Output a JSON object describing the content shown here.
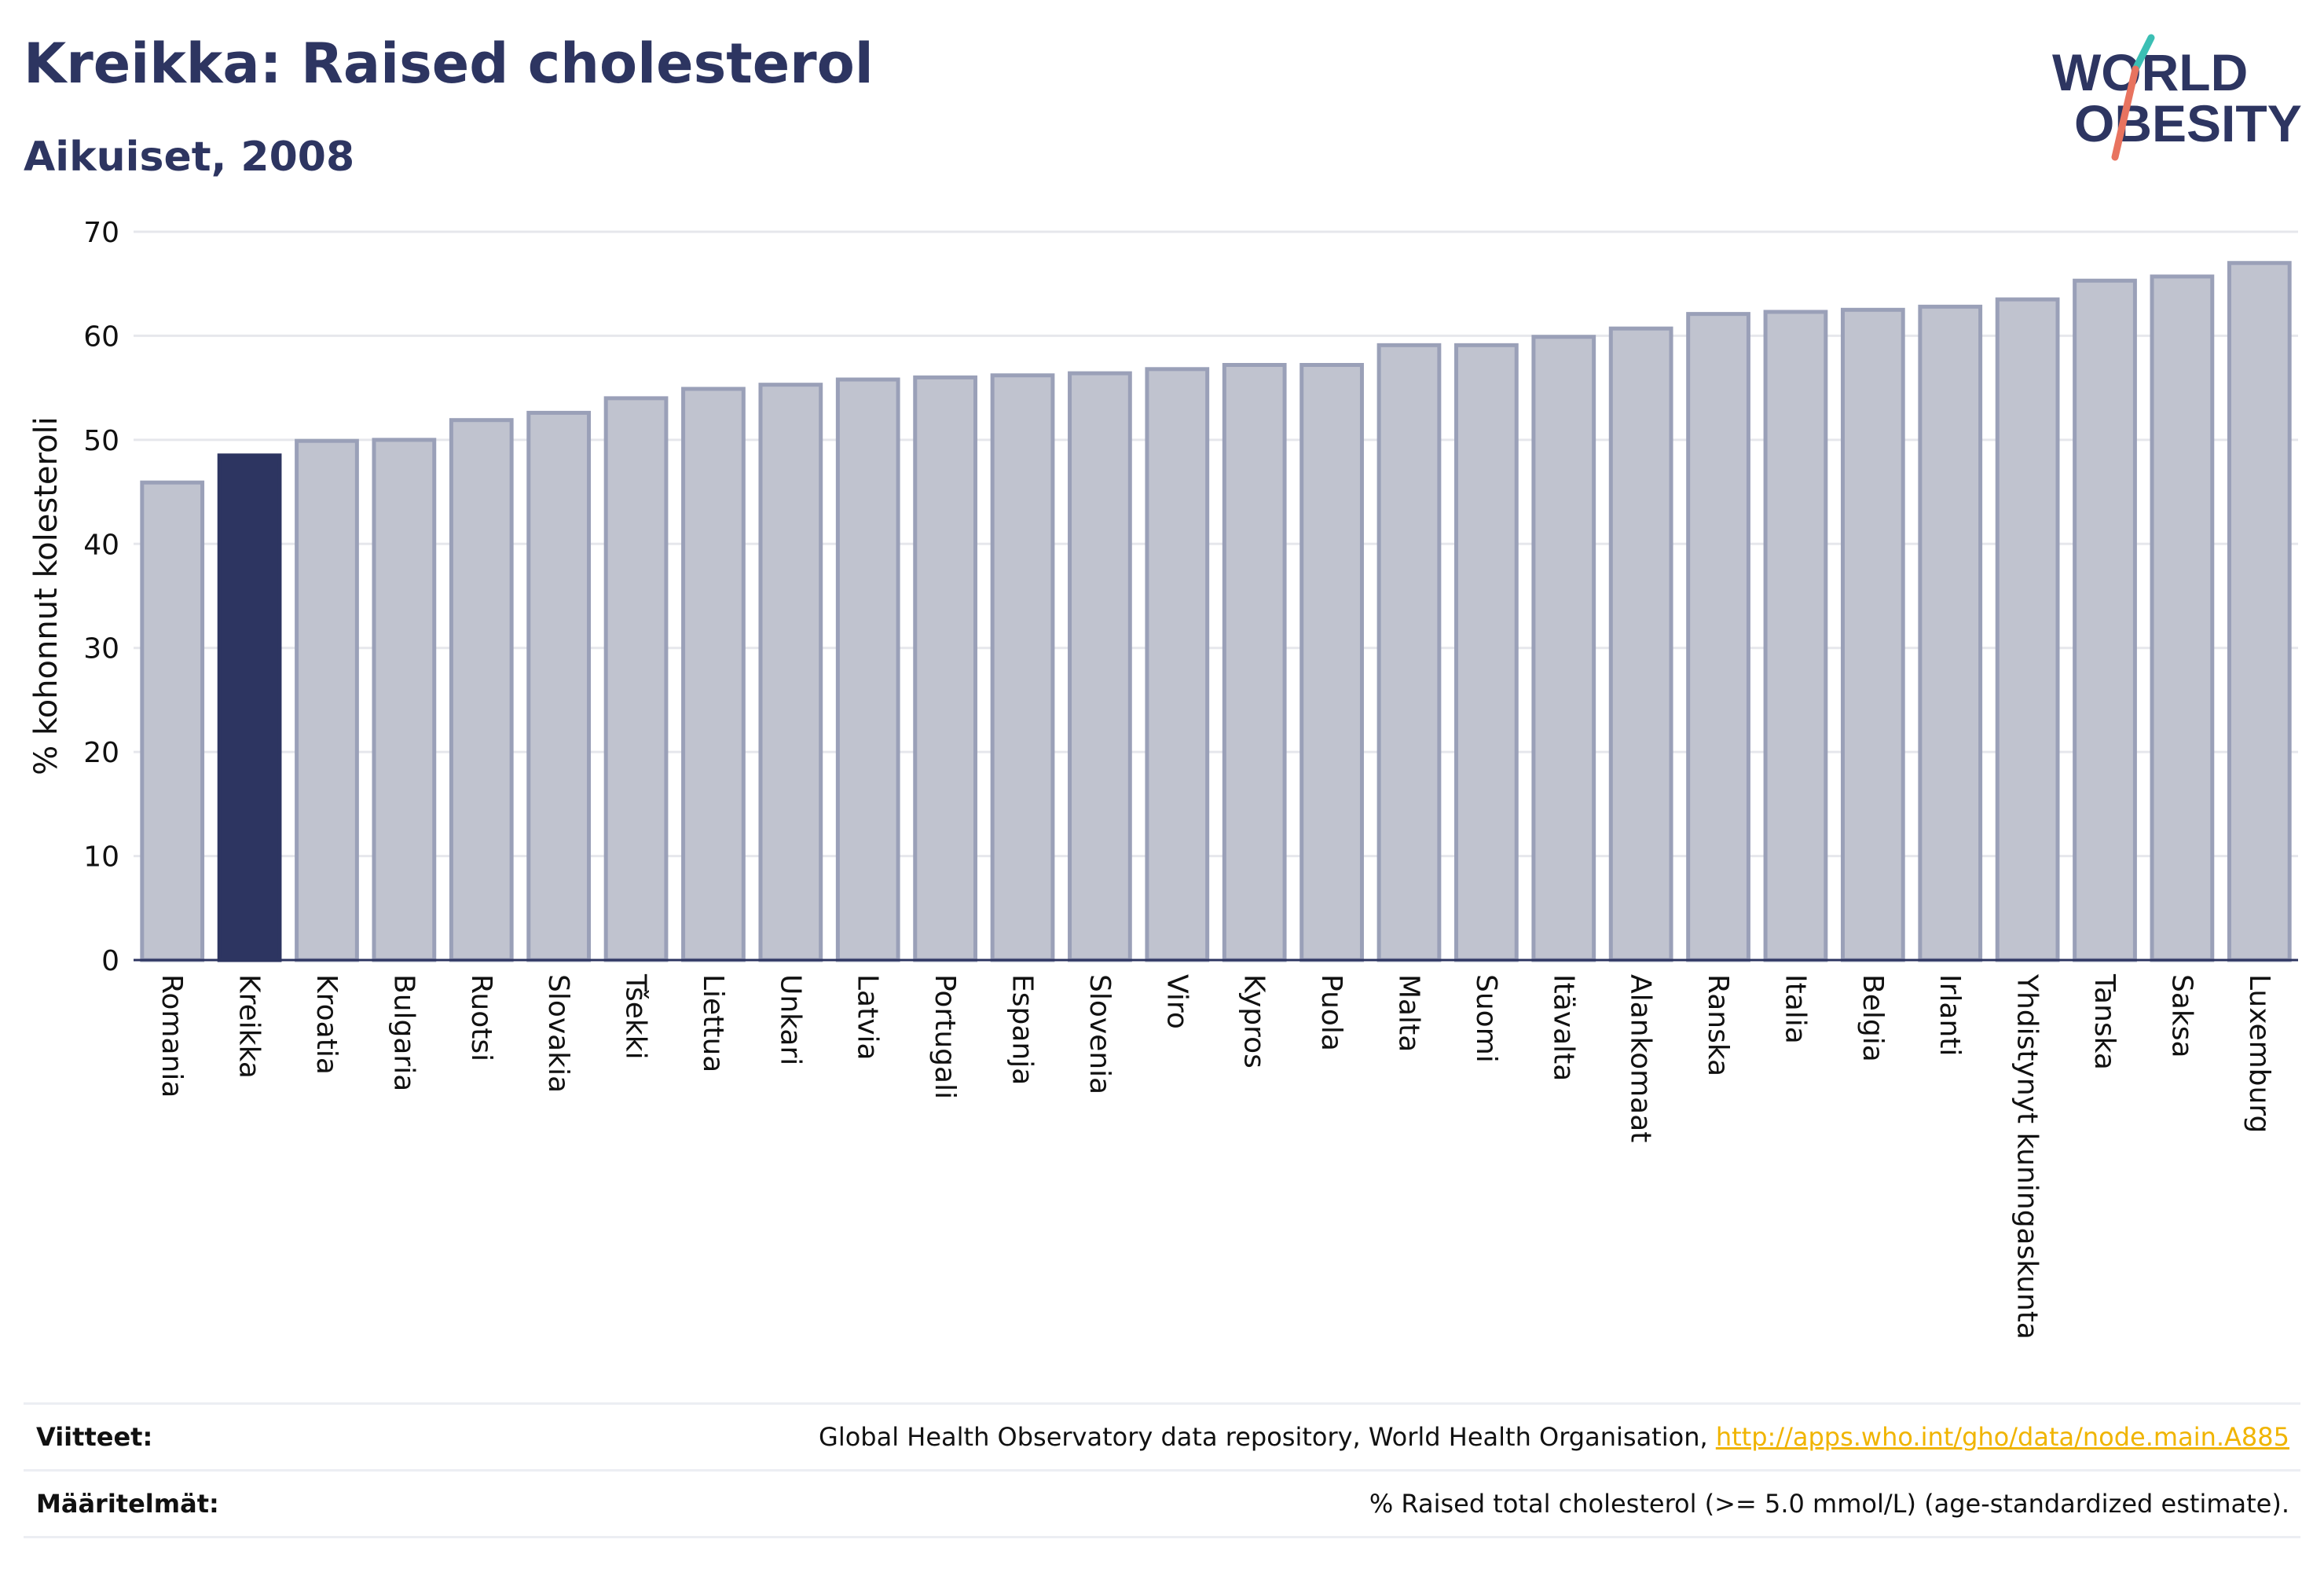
{
  "header": {
    "title": "Kreikka: Raised cholesterol",
    "subtitle": "Aikuiset, 2008"
  },
  "logo": {
    "line1": "WORLD",
    "line2": "OBESITY"
  },
  "colors": {
    "highlight": "#2d3561",
    "bar": "#c0c3cf",
    "bar_stroke": "#9aa0b8",
    "grid": "#e6e7ec"
  },
  "chart_data": {
    "type": "bar",
    "ylabel": "% kohonnut kolesteroli",
    "ylim": [
      0,
      70
    ],
    "yticks": [
      0,
      10,
      20,
      30,
      40,
      50,
      60,
      70
    ],
    "highlight": "Kreikka",
    "categories": [
      "Romania",
      "Kreikka",
      "Kroatia",
      "Bulgaria",
      "Ruotsi",
      "Slovakia",
      "Tšekki",
      "Liettua",
      "Unkari",
      "Latvia",
      "Portugali",
      "Espanja",
      "Slovenia",
      "Viro",
      "Kypros",
      "Puola",
      "Malta",
      "Suomi",
      "Itävalta",
      "Alankomaat",
      "Ranska",
      "Italia",
      "Belgia",
      "Irlanti",
      "Yhdistynyt kuningaskunta",
      "Tanska",
      "Saksa",
      "Luxemburg"
    ],
    "values": [
      45.9,
      48.5,
      49.9,
      50.0,
      51.9,
      52.6,
      54.0,
      54.9,
      55.3,
      55.8,
      56.0,
      56.2,
      56.4,
      56.8,
      57.2,
      57.2,
      59.1,
      59.1,
      59.9,
      60.7,
      62.1,
      62.3,
      62.5,
      62.8,
      63.5,
      65.3,
      65.7,
      67.0
    ]
  },
  "footer": {
    "sources_label": "Viitteet:",
    "sources_text": "Global Health Observatory data repository, World Health Organisation, ",
    "sources_link": "http://apps.who.int/gho/data/node.main.A885",
    "definitions_label": "Määritelmät:",
    "definitions_text": "% Raised total cholesterol (>= 5.0 mmol/L) (age-standardized estimate)."
  }
}
